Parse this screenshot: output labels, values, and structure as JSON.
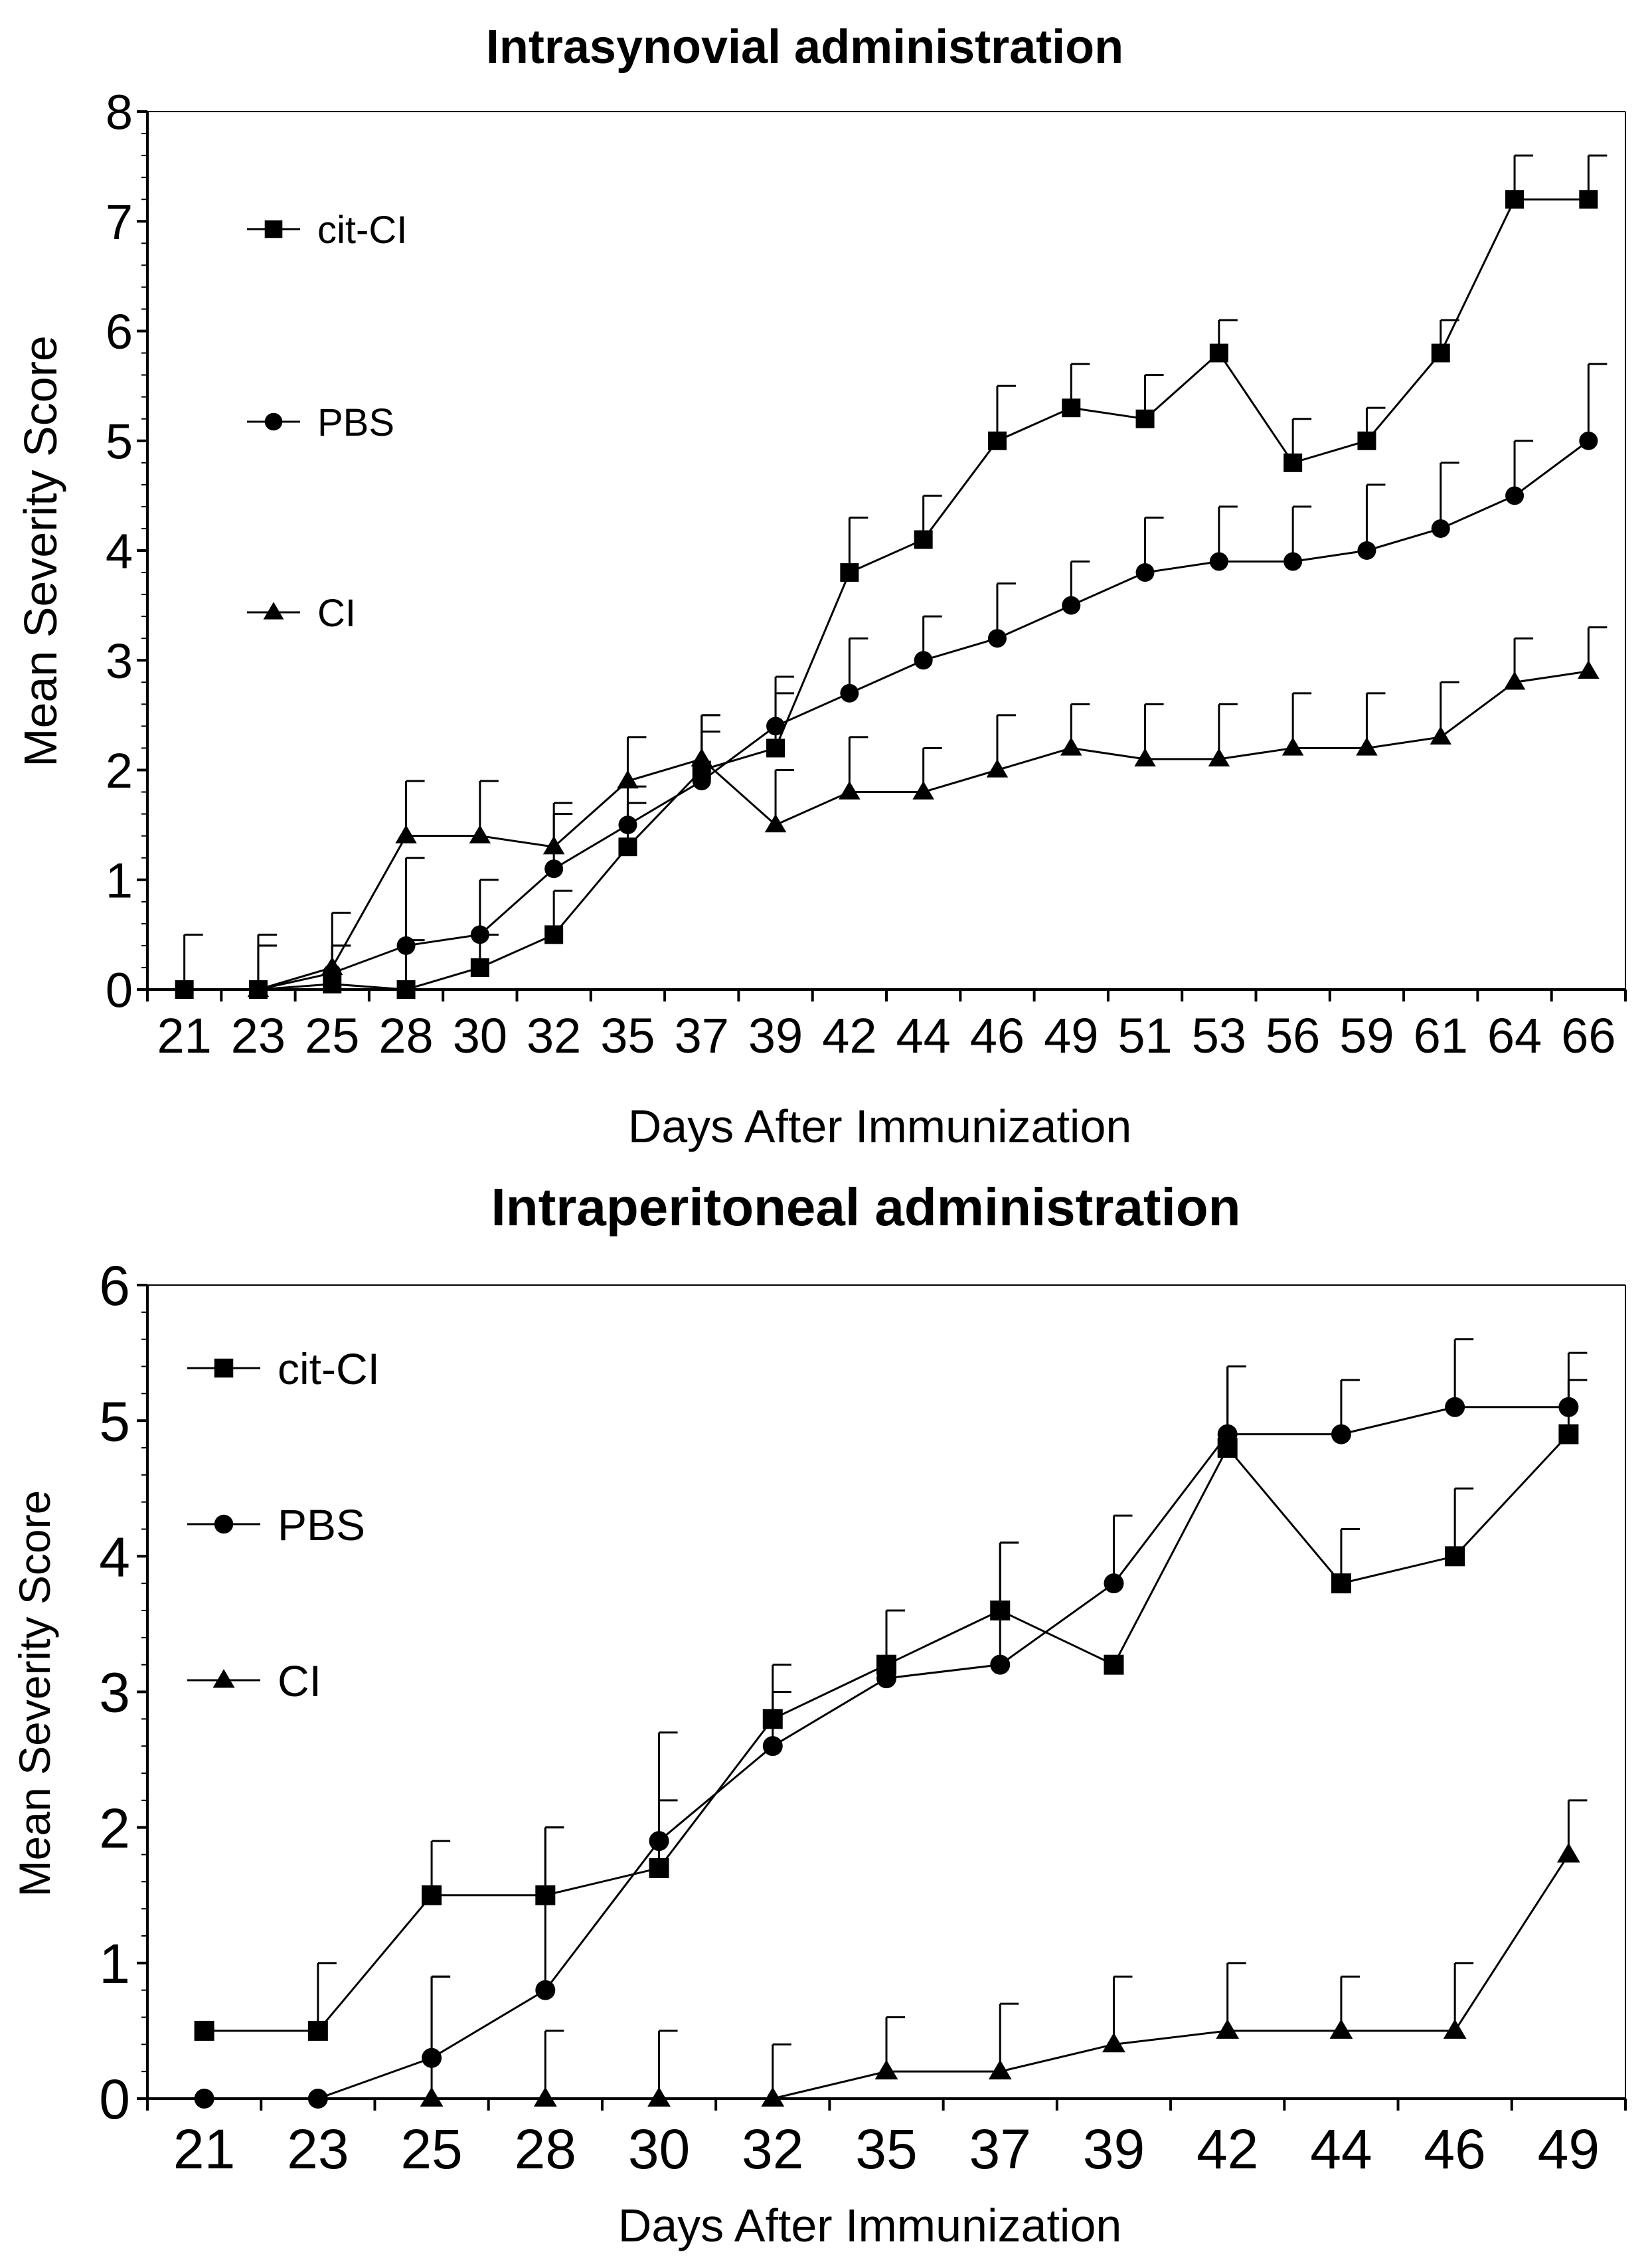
{
  "chart_data": [
    {
      "type": "line",
      "title": "Intrasynovial administration",
      "xlabel": "Days After Immunization",
      "ylabel": "Mean Severity Score",
      "categories": [
        "21",
        "23",
        "25",
        "28",
        "30",
        "32",
        "35",
        "37",
        "39",
        "42",
        "44",
        "46",
        "49",
        "51",
        "53",
        "56",
        "59",
        "61",
        "64",
        "66"
      ],
      "ylim": [
        0,
        8
      ],
      "yticks": [
        0,
        1,
        2,
        3,
        4,
        5,
        6,
        7,
        8
      ],
      "grid": false,
      "legend": "left",
      "series": [
        {
          "name": "cit-CI",
          "marker": "square",
          "values": [
            0,
            0,
            0.05,
            0,
            0.2,
            0.5,
            1.3,
            2.0,
            2.2,
            3.8,
            4.1,
            5.0,
            5.3,
            5.2,
            5.8,
            4.8,
            5.0,
            5.8,
            7.2,
            7.2
          ],
          "errors": [
            0.5,
            0.5,
            0.35,
            0.45,
            0.3,
            0.4,
            0.4,
            0.5,
            0.5,
            0.5,
            0.4,
            0.5,
            0.4,
            0.4,
            0.3,
            0.4,
            0.3,
            0.3,
            0.4,
            0.4
          ]
        },
        {
          "name": "PBS",
          "marker": "circle",
          "values": [
            null,
            0,
            0.15,
            0.4,
            0.5,
            1.1,
            1.5,
            1.9,
            2.4,
            2.7,
            3.0,
            3.2,
            3.5,
            3.8,
            3.9,
            3.9,
            4.0,
            4.2,
            4.5,
            5.0
          ],
          "errors": [
            null,
            0.4,
            0.25,
            0.8,
            0.5,
            0.5,
            0.35,
            0.45,
            0.45,
            0.5,
            0.4,
            0.5,
            0.4,
            0.5,
            0.5,
            0.5,
            0.6,
            0.6,
            0.5,
            0.7
          ]
        },
        {
          "name": "CI",
          "marker": "triangle",
          "values": [
            null,
            0,
            0.2,
            1.4,
            1.4,
            1.3,
            1.9,
            2.1,
            1.5,
            1.8,
            1.8,
            2.0,
            2.2,
            2.1,
            2.1,
            2.2,
            2.2,
            2.3,
            2.8,
            2.9
          ],
          "errors": [
            null,
            0.4,
            0.5,
            0.5,
            0.5,
            0.4,
            0.4,
            0.4,
            0.5,
            0.5,
            0.4,
            0.5,
            0.4,
            0.5,
            0.5,
            0.5,
            0.5,
            0.5,
            0.4,
            0.4
          ]
        }
      ]
    },
    {
      "type": "line",
      "title": "Intraperitoneal administration",
      "xlabel": "Days After Immunization",
      "ylabel": "Mean Severity Score",
      "categories": [
        "21",
        "23",
        "25",
        "28",
        "30",
        "32",
        "35",
        "37",
        "39",
        "42",
        "44",
        "46",
        "49"
      ],
      "ylim": [
        0,
        6
      ],
      "yticks": [
        0,
        1,
        2,
        3,
        4,
        5,
        6
      ],
      "grid": false,
      "legend": "left",
      "series": [
        {
          "name": "cit-CI",
          "marker": "square",
          "values": [
            0.5,
            0.5,
            1.5,
            1.5,
            1.7,
            2.8,
            3.2,
            3.6,
            3.2,
            4.8,
            3.8,
            4.0,
            4.9
          ],
          "errors": [
            null,
            0.5,
            0.4,
            0.5,
            0.5,
            0.4,
            0.4,
            0.5,
            null,
            0.6,
            0.4,
            0.5,
            0.4
          ]
        },
        {
          "name": "PBS",
          "marker": "circle",
          "values": [
            0,
            0,
            0.3,
            0.8,
            1.9,
            2.6,
            3.1,
            3.2,
            3.8,
            4.9,
            4.9,
            5.1,
            5.1
          ],
          "errors": [
            null,
            null,
            0.6,
            1.2,
            0.8,
            0.4,
            0.5,
            0.9,
            0.5,
            0.5,
            0.4,
            0.5,
            0.4
          ]
        },
        {
          "name": "CI",
          "marker": "triangle",
          "values": [
            null,
            null,
            0,
            0,
            0,
            0,
            0.2,
            0.2,
            0.4,
            0.5,
            0.5,
            0.5,
            1.8
          ],
          "errors": [
            null,
            null,
            0.9,
            0.5,
            0.5,
            0.4,
            0.4,
            0.5,
            0.5,
            0.5,
            0.4,
            0.5,
            0.4
          ]
        }
      ]
    }
  ]
}
